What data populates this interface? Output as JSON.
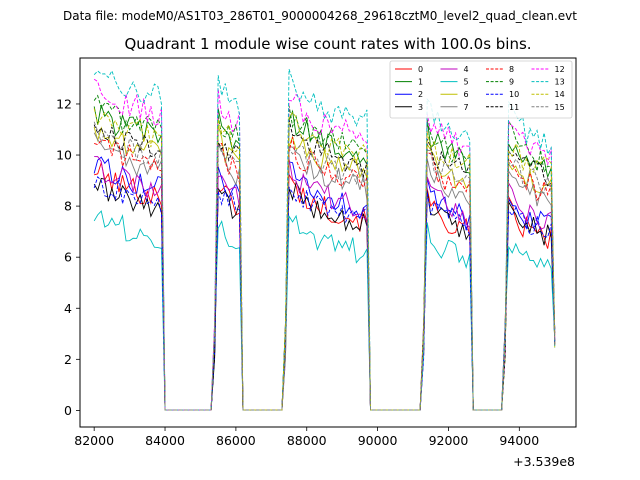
{
  "chart_data": {
    "type": "line",
    "suptitle": "Data file: modeM0/AS1T03_286T01_9000004268_29618cztM0_level2_quad_clean.evt",
    "title": "Quadrant 1 module wise count rates with 100.0s bins.",
    "xlabel": "",
    "ylabel": "",
    "x_offset_label": "+3.539e8",
    "xlim": [
      81600,
      95600
    ],
    "ylim": [
      -0.65,
      13.8
    ],
    "xticks": [
      82000,
      84000,
      86000,
      88000,
      90000,
      92000,
      94000
    ],
    "xtick_labels": [
      "82000",
      "84000",
      "86000",
      "88000",
      "90000",
      "92000",
      "94000"
    ],
    "yticks": [
      0,
      2,
      4,
      6,
      8,
      10,
      12
    ],
    "ytick_labels": [
      "0",
      "2",
      "4",
      "6",
      "8",
      "10",
      "12"
    ],
    "legend_position": "upper right",
    "grid": false,
    "bin_seconds": 100,
    "active_segments": [
      {
        "start": 82000,
        "end": 83900
      },
      {
        "start": 85400,
        "end": 86100
      },
      {
        "start": 87400,
        "end": 89700
      },
      {
        "start": 91300,
        "end": 92600
      },
      {
        "start": 93600,
        "end": 95000
      }
    ],
    "gap_value": 0.02,
    "series": [
      {
        "name": "0",
        "color": "#ff0000",
        "dash": "solid",
        "start_level": 8.6,
        "end_level": 6.6
      },
      {
        "name": "1",
        "color": "#008000",
        "dash": "solid",
        "start_level": 10.9,
        "end_level": 9.5
      },
      {
        "name": "2",
        "color": "#0000ff",
        "dash": "solid",
        "start_level": 8.9,
        "end_level": 7.1
      },
      {
        "name": "3",
        "color": "#000000",
        "dash": "solid",
        "start_level": 8.1,
        "end_level": 6.8
      },
      {
        "name": "4",
        "color": "#bf00bf",
        "dash": "solid",
        "start_level": 8.8,
        "end_level": 7.3
      },
      {
        "name": "5",
        "color": "#00bfbf",
        "dash": "solid",
        "start_level": 6.9,
        "end_level": 5.6
      },
      {
        "name": "6",
        "color": "#bfbf00",
        "dash": "solid",
        "start_level": 10.2,
        "end_level": 8.6
      },
      {
        "name": "7",
        "color": "#808080",
        "dash": "solid",
        "start_level": 9.6,
        "end_level": 8.1
      },
      {
        "name": "8",
        "color": "#ff0000",
        "dash": "dashed",
        "start_level": 9.8,
        "end_level": 8.4
      },
      {
        "name": "9",
        "color": "#008000",
        "dash": "dashed",
        "start_level": 11.1,
        "end_level": 9.6
      },
      {
        "name": "10",
        "color": "#0000ff",
        "dash": "dashed",
        "start_level": 8.3,
        "end_level": 6.9
      },
      {
        "name": "11",
        "color": "#000000",
        "dash": "dashed",
        "start_level": 10.4,
        "end_level": 9.0
      },
      {
        "name": "12",
        "color": "#ff00ff",
        "dash": "dashed",
        "start_level": 11.8,
        "end_level": 9.9
      },
      {
        "name": "13",
        "color": "#00bfbf",
        "dash": "dashed",
        "start_level": 12.6,
        "end_level": 10.4
      },
      {
        "name": "14",
        "color": "#bfbf00",
        "dash": "dashed",
        "start_level": 10.9,
        "end_level": 9.3
      },
      {
        "name": "15",
        "color": "#808080",
        "dash": "dashed",
        "start_level": 10.0,
        "end_level": 8.7
      }
    ]
  }
}
